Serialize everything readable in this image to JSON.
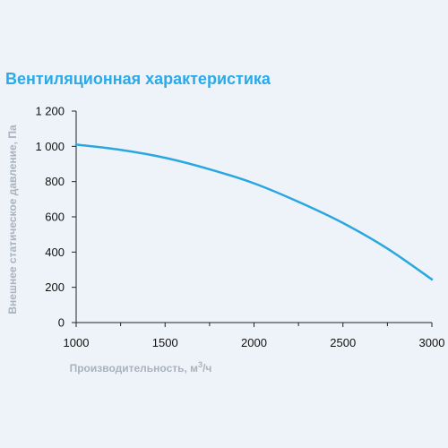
{
  "chart_data": {
    "type": "line",
    "title": "Вентиляционная характеристика",
    "xlabel": "Производительность, м",
    "xlabel_sup": "3",
    "xlabel_tail": "/ч",
    "ylabel": "Внешнее статическое давление, Па",
    "xlim": [
      1000,
      3000
    ],
    "ylim": [
      0,
      1200
    ],
    "x_ticks": [
      1000,
      1500,
      2000,
      2500,
      3000
    ],
    "x_tick_labels": [
      "1000",
      "1500",
      "2000",
      "2500",
      "3000"
    ],
    "y_ticks": [
      0,
      200,
      400,
      600,
      800,
      1000,
      1200
    ],
    "y_tick_labels": [
      "0",
      "200",
      "400",
      "600",
      "800",
      "1 000",
      "1 200"
    ],
    "grid": false,
    "series": [
      {
        "color": "#2aa7e0",
        "x": [
          1000,
          1250,
          1500,
          1750,
          2000,
          2250,
          2500,
          2750,
          3000
        ],
        "y": [
          1010,
          980,
          935,
          870,
          790,
          685,
          565,
          420,
          245
        ]
      }
    ]
  }
}
